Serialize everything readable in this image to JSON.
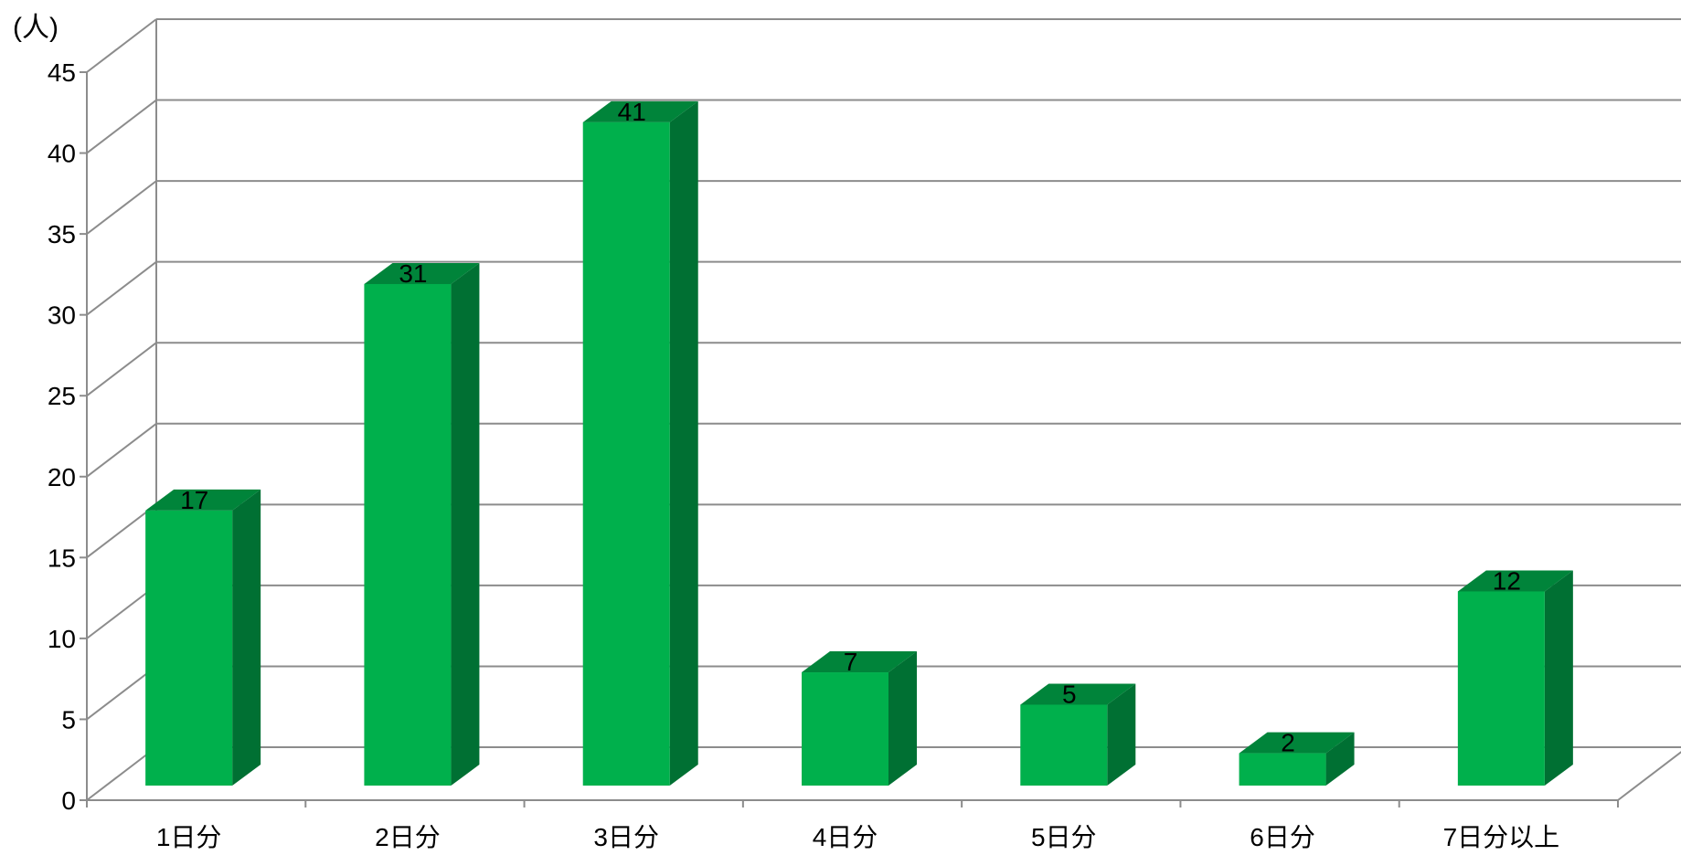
{
  "chart_data": {
    "type": "bar",
    "title": "",
    "xlabel": "",
    "ylabel": "(人)",
    "categories": [
      "1日分",
      "2日分",
      "3日分",
      "4日分",
      "5日分",
      "6日分",
      "7日分以上"
    ],
    "values": [
      17,
      31,
      41,
      7,
      5,
      2,
      12
    ],
    "ylim": [
      0,
      45
    ],
    "yticks": [
      "0",
      "5",
      "10",
      "15",
      "20",
      "25",
      "30",
      "35",
      "40",
      "45"
    ],
    "grid": true,
    "legend": "none",
    "colors": {
      "bar_front": "#00B04C",
      "bar_top": "#00843A",
      "bar_side": "#007033",
      "grid": "#8c8c8c",
      "axis": "#8c8c8c"
    }
  }
}
